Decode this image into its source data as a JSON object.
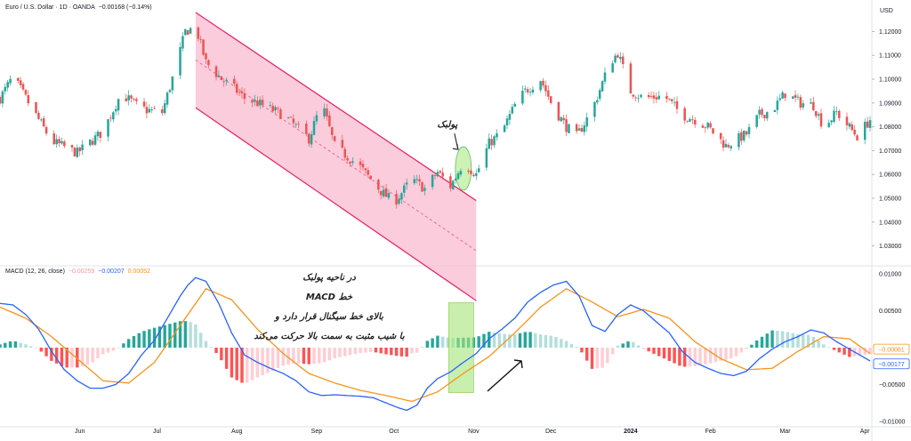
{
  "header": {
    "symbol": "Euro / U.S. Dollar · 1D · OANDA",
    "change": "−0.00168 (−0.14%)",
    "currency": "USD"
  },
  "macd_header": {
    "title": "MACD (12, 26, close)",
    "hist_value": "−0.00259",
    "macd_value": "−0.00207",
    "signal_value": "0.00052"
  },
  "annotations": {
    "pullback": "پولبک",
    "macd_note_lines": [
      "در ناحیه پولبک",
      "خط MACD",
      "بالای خط سیگنال قرار دارد و",
      "با شیب مثبت به سمت بالا حرکت می‌کند"
    ]
  },
  "badges": {
    "signal": "−0.00081",
    "macd": "−0.00177"
  },
  "colors": {
    "up": "#26a69a",
    "down": "#ef5350",
    "macd_line": "#2962ff",
    "signal_line": "#f7931a",
    "hist_up_strong": "#26a69a",
    "hist_up_weak": "#b2dfdb",
    "hist_down_strong": "#ff5252",
    "hist_down_weak": "#ffcdd2",
    "channel_fill": "#f8bbd0",
    "channel_line": "#e91e63",
    "highlight_fill": "#a5e57a"
  },
  "chart_data": [
    {
      "type": "candlestick",
      "title": "Euro / U.S. Dollar · 1D · OANDA",
      "ylabel": "USD",
      "ylim": [
        1.022,
        1.128
      ],
      "y_ticks": [
        1.03,
        1.04,
        1.05,
        1.06,
        1.07,
        1.08,
        1.09,
        1.1,
        1.11,
        1.12
      ],
      "y_tick_labels": [
        "1.03000",
        "1.04000",
        "1.05000",
        "1.06000",
        "1.07000",
        "1.08000",
        "1.09000",
        "1.10000",
        "1.11000",
        "1.12000"
      ],
      "x_ticks": [
        "Jun",
        "Jul",
        "Aug",
        "Sep",
        "Oct",
        "Nov",
        "Dec",
        "2024",
        "Feb",
        "Mar",
        "Apr"
      ],
      "x_tick_days": [
        31,
        61,
        92,
        123,
        153,
        184,
        214,
        245,
        276,
        305,
        336
      ],
      "x_range_days": [
        0,
        338
      ],
      "close_anchors_days": [
        0,
        5,
        10,
        20,
        30,
        40,
        47,
        53,
        57,
        63,
        68,
        72,
        76,
        80,
        86,
        90,
        95,
        100,
        110,
        120,
        125,
        130,
        140,
        148,
        153,
        160,
        165,
        170,
        175,
        180,
        185,
        190,
        195,
        200,
        204,
        210,
        215,
        220,
        224,
        230,
        237,
        240,
        245,
        250,
        258,
        265,
        270,
        275,
        282,
        290,
        295,
        300,
        305,
        311,
        316,
        320,
        325,
        333,
        338
      ],
      "close_anchors": [
        1.092,
        1.101,
        1.092,
        1.074,
        1.069,
        1.078,
        1.094,
        1.089,
        1.087,
        1.086,
        1.104,
        1.12,
        1.122,
        1.107,
        1.1,
        1.097,
        1.092,
        1.09,
        1.085,
        1.075,
        1.09,
        1.072,
        1.063,
        1.053,
        1.048,
        1.058,
        1.054,
        1.061,
        1.055,
        1.065,
        1.06,
        1.073,
        1.078,
        1.089,
        1.095,
        1.1,
        1.088,
        1.08,
        1.076,
        1.087,
        1.107,
        1.111,
        1.095,
        1.092,
        1.093,
        1.085,
        1.083,
        1.08,
        1.072,
        1.077,
        1.085,
        1.087,
        1.094,
        1.09,
        1.089,
        1.08,
        1.086,
        1.076,
        1.083
      ],
      "channel": {
        "upper": [
          [
            76,
            1.128
          ],
          [
            185,
            1.049
          ]
        ],
        "lower": [
          [
            76,
            1.088
          ],
          [
            185,
            1.007
          ]
        ],
        "mid": [
          [
            76,
            1.108
          ],
          [
            185,
            1.028
          ]
        ]
      },
      "pullback_zone": {
        "day": 180,
        "price_low": 1.056,
        "price_high": 1.069
      }
    },
    {
      "type": "macd",
      "title": "MACD (12, 26, close)",
      "ylim": [
        -0.0105,
        0.0105
      ],
      "y_ticks": [
        0.01,
        0.005,
        -0.005,
        -0.01
      ],
      "y_tick_labels": [
        "0.01000",
        "0.00500",
        "−0.00500",
        "−0.01000"
      ],
      "zero_value": 0,
      "macd_line_days": [
        0,
        5,
        10,
        15,
        20,
        25,
        30,
        35,
        40,
        45,
        50,
        55,
        60,
        65,
        70,
        73,
        76,
        80,
        85,
        90,
        95,
        100,
        105,
        110,
        115,
        120,
        125,
        130,
        135,
        140,
        145,
        150,
        155,
        158,
        162,
        166,
        170,
        175,
        180,
        185,
        190,
        195,
        200,
        205,
        210,
        215,
        220,
        225,
        230,
        235,
        240,
        245,
        250,
        255,
        260,
        265,
        270,
        275,
        280,
        285,
        290,
        295,
        300,
        305,
        310,
        315,
        320,
        325,
        330,
        338
      ],
      "macd_line": [
        0.006,
        0.0058,
        0.0045,
        0.0025,
        -0.0005,
        -0.003,
        -0.0045,
        -0.0055,
        -0.0055,
        -0.005,
        -0.0035,
        -0.001,
        0.001,
        0.004,
        0.007,
        0.0085,
        0.0095,
        0.009,
        0.006,
        0.002,
        -0.001,
        -0.002,
        -0.0028,
        -0.0035,
        -0.0045,
        -0.006,
        -0.0065,
        -0.0064,
        -0.0065,
        -0.0066,
        -0.0068,
        -0.0075,
        -0.0082,
        -0.0085,
        -0.0078,
        -0.0055,
        -0.0042,
        -0.0033,
        -0.002,
        -0.0008,
        0.0012,
        0.0025,
        0.004,
        0.0062,
        0.0075,
        0.0085,
        0.009,
        0.007,
        0.003,
        0.0022,
        0.0045,
        0.0058,
        0.005,
        0.0035,
        0.002,
        -0.0005,
        -0.002,
        -0.0028,
        -0.0035,
        -0.0038,
        -0.0032,
        -0.0015,
        -0.0002,
        0.0008,
        0.0015,
        0.0024,
        0.002,
        0.0008,
        -0.0002,
        -0.0018
      ],
      "signal_line_days": [
        0,
        10,
        20,
        30,
        40,
        50,
        60,
        70,
        80,
        90,
        100,
        110,
        120,
        130,
        140,
        150,
        160,
        170,
        180,
        190,
        200,
        210,
        220,
        230,
        240,
        250,
        260,
        270,
        280,
        290,
        300,
        310,
        320,
        330,
        338
      ],
      "signal_line": [
        0.0055,
        0.004,
        0.0015,
        -0.0015,
        -0.0045,
        -0.0048,
        -0.002,
        0.003,
        0.008,
        0.0065,
        0.0025,
        -0.0008,
        -0.0035,
        -0.0048,
        -0.0058,
        -0.0065,
        -0.0073,
        -0.006,
        -0.0035,
        -0.0012,
        0.002,
        0.0055,
        0.008,
        0.0062,
        0.0042,
        0.0052,
        0.004,
        0.0008,
        -0.0015,
        -0.003,
        -0.0028,
        -0.0005,
        0.0015,
        0.0012,
        -0.0008
      ]
    }
  ]
}
